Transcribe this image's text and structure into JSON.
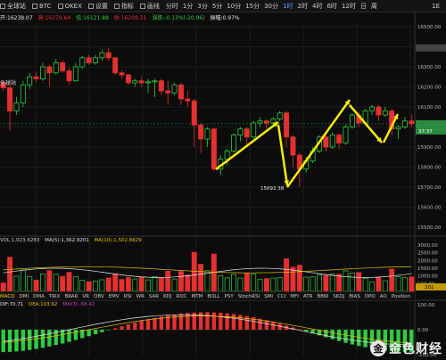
{
  "toolbar": {
    "items": [
      {
        "label": "全球站",
        "icon": "globe-icon"
      },
      {
        "label": "BTC",
        "icon": "coin-icon"
      },
      {
        "label": "OKEX",
        "icon": "exchange-icon"
      },
      {
        "label": "设置",
        "icon": "gear-icon"
      },
      {
        "label": "指标",
        "icon": "indicator-icon"
      },
      {
        "label": "画线",
        "icon": "pencil-icon"
      }
    ],
    "periods": [
      "分时",
      "1分",
      "3分",
      "5分",
      "10分",
      "15分",
      "30分",
      "1时",
      "2时",
      "4时",
      "6时",
      "12时",
      "日",
      "周"
    ],
    "active_period": "1时",
    "right_label": "1E"
  },
  "info": {
    "open": "开:16238.07",
    "high": "高:16279.64",
    "low": "低:16121.88",
    "close": "收:16209.31",
    "change": "涨跌:-0.13%(-20.96)",
    "amplitude": "振幅:0.97%"
  },
  "market_label": "全球站",
  "price_axis": {
    "ticks": [
      "16500.00",
      "16394.38",
      "16300.00",
      "16200.00",
      "16100.00",
      "16015.75",
      "15900.00",
      "15800.00",
      "15700.00",
      "15600.00",
      "15500.00"
    ],
    "current_price": "16015.75",
    "current_sub": "37:37",
    "top_price": "16394.38",
    "low_annotation": "15692.38"
  },
  "volume": {
    "label": "VOL",
    "value": "1,023.6283",
    "ma5": "MA(5):1,362.9201",
    "ma10": "MA(10):1,502.8829",
    "ticks": [
      "3000.00",
      "2500.00",
      "2000.00",
      "1500.00",
      "1000.00",
      "500.00"
    ],
    "current": "201"
  },
  "tabs": [
    "MACD",
    "DMI",
    "DMA",
    "TRIX",
    "BRAR",
    "VR",
    "OBV",
    "EMV",
    "RSI",
    "WR",
    "SAR",
    "KDJ",
    "ROC",
    "MTM",
    "BOLL",
    "PSY",
    "StochRSI",
    "SMI",
    "CCI",
    "MFI",
    "ATR",
    "BBW",
    "SKDJ",
    "BIAS",
    "DPO",
    "AO",
    "Position"
  ],
  "macd": {
    "dif": "DIF:70.71",
    "dea": "DEA:103.92",
    "macd": "MACD:-66.42",
    "ticks": [
      "100.00",
      "0.00",
      "-100.00"
    ]
  },
  "watermark": {
    "logo": "金",
    "text": "金色财经"
  },
  "colors": {
    "up": "#2ecc40",
    "down": "#e63030",
    "arrow": "#ffee00",
    "accent": "#5aa0ff"
  }
}
